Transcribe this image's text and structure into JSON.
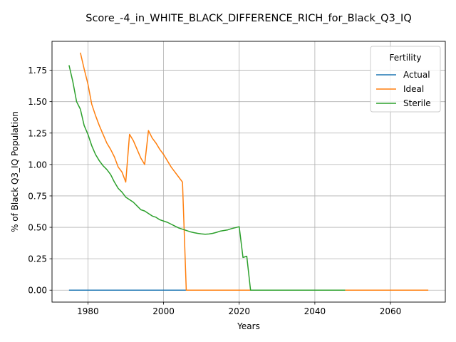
{
  "chart_data": {
    "type": "line",
    "title": "Score_-4_in_WHITE_BLACK_DIFFERENCE_RICH_for_Black_Q3_IQ",
    "xlabel": "Years",
    "ylabel": "% of Black Q3_IQ Population",
    "xlim": [
      1970.5,
      2074.5
    ],
    "ylim": [
      -0.095,
      1.98
    ],
    "xticks": [
      1980,
      2000,
      2020,
      2040,
      2060
    ],
    "yticks": [
      0.0,
      0.25,
      0.5,
      0.75,
      1.0,
      1.25,
      1.5,
      1.75
    ],
    "xtick_labels": [
      "1980",
      "2000",
      "2020",
      "2040",
      "2060"
    ],
    "ytick_labels": [
      "0.00",
      "0.25",
      "0.50",
      "0.75",
      "1.00",
      "1.25",
      "1.50",
      "1.75"
    ],
    "grid": true,
    "legend": {
      "title": "Fertility",
      "placement": "top-right"
    },
    "series": [
      {
        "name": "Actual",
        "color": "#1f77b4",
        "points": [
          [
            1975,
            0.0
          ],
          [
            2048,
            0.0
          ]
        ]
      },
      {
        "name": "Ideal",
        "color": "#ff7f0e",
        "points": [
          [
            1978,
            1.89
          ],
          [
            1979,
            1.76
          ],
          [
            1980,
            1.64
          ],
          [
            1981,
            1.48
          ],
          [
            1982,
            1.39
          ],
          [
            1983,
            1.31
          ],
          [
            1984,
            1.24
          ],
          [
            1985,
            1.17
          ],
          [
            1986,
            1.12
          ],
          [
            1987,
            1.06
          ],
          [
            1988,
            0.98
          ],
          [
            1989,
            0.94
          ],
          [
            1990,
            0.86
          ],
          [
            1991,
            1.24
          ],
          [
            1992,
            1.19
          ],
          [
            1993,
            1.12
          ],
          [
            1994,
            1.05
          ],
          [
            1995,
            1.0
          ],
          [
            1996,
            1.27
          ],
          [
            1997,
            1.21
          ],
          [
            1998,
            1.17
          ],
          [
            1999,
            1.12
          ],
          [
            2000,
            1.08
          ],
          [
            2001,
            1.03
          ],
          [
            2002,
            0.98
          ],
          [
            2003,
            0.94
          ],
          [
            2004,
            0.9
          ],
          [
            2005,
            0.86
          ],
          [
            2006,
            0.0
          ],
          [
            2070,
            0.0
          ]
        ]
      },
      {
        "name": "Sterile",
        "color": "#2ca02c",
        "points": [
          [
            1975,
            1.79
          ],
          [
            1976,
            1.66
          ],
          [
            1977,
            1.5
          ],
          [
            1978,
            1.44
          ],
          [
            1979,
            1.31
          ],
          [
            1980,
            1.24
          ],
          [
            1981,
            1.15
          ],
          [
            1982,
            1.08
          ],
          [
            1983,
            1.03
          ],
          [
            1984,
            0.99
          ],
          [
            1985,
            0.96
          ],
          [
            1986,
            0.92
          ],
          [
            1987,
            0.86
          ],
          [
            1988,
            0.81
          ],
          [
            1989,
            0.78
          ],
          [
            1990,
            0.74
          ],
          [
            1991,
            0.72
          ],
          [
            1992,
            0.7
          ],
          [
            1993,
            0.67
          ],
          [
            1994,
            0.64
          ],
          [
            1995,
            0.63
          ],
          [
            1996,
            0.61
          ],
          [
            1997,
            0.59
          ],
          [
            1998,
            0.58
          ],
          [
            1999,
            0.56
          ],
          [
            2000,
            0.55
          ],
          [
            2001,
            0.54
          ],
          [
            2002,
            0.525
          ],
          [
            2003,
            0.51
          ],
          [
            2004,
            0.495
          ],
          [
            2005,
            0.485
          ],
          [
            2006,
            0.475
          ],
          [
            2007,
            0.465
          ],
          [
            2008,
            0.458
          ],
          [
            2009,
            0.452
          ],
          [
            2010,
            0.448
          ],
          [
            2011,
            0.445
          ],
          [
            2012,
            0.447
          ],
          [
            2013,
            0.452
          ],
          [
            2014,
            0.46
          ],
          [
            2015,
            0.47
          ],
          [
            2016,
            0.475
          ],
          [
            2017,
            0.48
          ],
          [
            2018,
            0.49
          ],
          [
            2019,
            0.497
          ],
          [
            2020,
            0.505
          ],
          [
            2021,
            0.26
          ],
          [
            2022,
            0.27
          ],
          [
            2023,
            0.0
          ],
          [
            2048,
            0.0
          ]
        ]
      }
    ]
  }
}
